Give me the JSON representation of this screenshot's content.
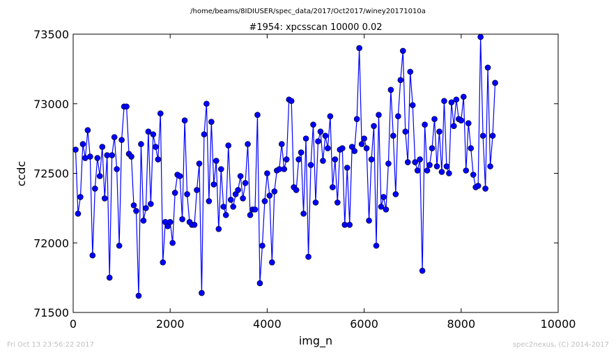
{
  "chart_data": {
    "type": "line",
    "suptitle": "/home/beams/8IDIUSER/spec_data/2017/Oct2017/winey20171010a",
    "title": "#1954: xpcsscan 10000 0.02",
    "xlabel": "img_n",
    "ylabel": "ccdc",
    "xlim": [
      0,
      10000
    ],
    "ylim": [
      71500,
      73500
    ],
    "xticks": [
      0,
      2000,
      4000,
      6000,
      8000,
      10000
    ],
    "yticks": [
      71500,
      72000,
      72500,
      73000,
      73500
    ],
    "xtick_labels": [
      "0",
      "2000",
      "4000",
      "6000",
      "8000",
      "10000"
    ],
    "ytick_labels": [
      "71500",
      "72000",
      "72500",
      "73000",
      "73500"
    ],
    "grid": false,
    "series_color": "#0000ff",
    "marker_color": "#0000ff",
    "marker_edge": "#000000",
    "x_start": 50,
    "x_step": 50,
    "values": [
      72670,
      72210,
      72330,
      72710,
      72610,
      72810,
      72620,
      71910,
      72390,
      72610,
      72480,
      72690,
      72320,
      72630,
      71750,
      72630,
      72760,
      72530,
      71980,
      72740,
      72980,
      72980,
      72640,
      72620,
      72270,
      72230,
      71620,
      72710,
      72160,
      72250,
      72800,
      72280,
      72780,
      72690,
      72600,
      72930,
      71860,
      72150,
      72120,
      72150,
      72000,
      72360,
      72490,
      72480,
      72170,
      72880,
      72350,
      72150,
      72130,
      72130,
      72380,
      72570,
      71640,
      72780,
      73000,
      72300,
      72870,
      72420,
      72590,
      72100,
      72530,
      72260,
      72200,
      72700,
      72310,
      72260,
      72350,
      72380,
      72480,
      72320,
      72430,
      72710,
      72200,
      72240,
      72240,
      72920,
      71710,
      71980,
      72300,
      72500,
      72340,
      71860,
      72370,
      72520,
      72530,
      72710,
      72530,
      72600,
      73030,
      73020,
      72400,
      72380,
      72600,
      72650,
      72210,
      72750,
      71900,
      72560,
      72850,
      72290,
      72730,
      72800,
      72590,
      72770,
      72680,
      72910,
      72400,
      72600,
      72290,
      72670,
      72680,
      72130,
      72540,
      72130,
      72690,
      72660,
      72890,
      73400,
      72710,
      72750,
      72680,
      72160,
      72600,
      72840,
      71980,
      72920,
      72260,
      72330,
      72240,
      72570,
      73100,
      72770,
      72350,
      72910,
      73170,
      73380,
      72800,
      72580,
      73230,
      72990,
      72580,
      72520,
      72600,
      71800,
      72850,
      72520,
      72560,
      72680,
      72890,
      72550,
      72800,
      72510,
      73020,
      72550,
      72500,
      73010,
      72840,
      73030,
      72890,
      72880,
      73050,
      72520,
      72860,
      72680,
      72490,
      72400,
      72410,
      73480,
      72770,
      72390,
      73260,
      72550,
      72770,
      73150
    ]
  },
  "footer": {
    "left": "Fri Oct 13 23:56:22 2017",
    "right": "spec2nexus, (C) 2014-2017"
  }
}
